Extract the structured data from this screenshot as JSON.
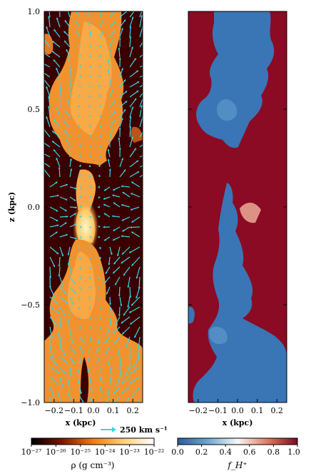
{
  "chart_data": [
    {
      "type": "heatmap",
      "title": "",
      "xlabel": "x (kpc)",
      "ylabel": "z (kpc)",
      "xlim": [
        -0.25,
        0.25
      ],
      "ylim": [
        -1.0,
        1.0
      ],
      "xticks": [
        "−0.2",
        "−0.1",
        "0.0",
        "0.1",
        "0.2"
      ],
      "yticks": [
        "−1.0",
        "−0.5",
        "0.0",
        "0.5",
        "1.0"
      ],
      "colorbar": {
        "label": "ρ (g cm⁻³)",
        "ticks": [
          "10⁻²⁷",
          "10⁻²⁶",
          "10⁻²⁵",
          "10⁻²⁴",
          "10⁻²³",
          "10⁻²²"
        ],
        "range": [
          -27,
          -22
        ],
        "colormap": "afmhot",
        "scale": "log"
      },
      "quiver_key": "250 km s⁻¹",
      "quiver_color": "#35d7e6",
      "background_color": "#3a0000"
    },
    {
      "type": "heatmap",
      "title": "",
      "xlabel": "x (kpc)",
      "ylabel": "",
      "xlim": [
        -0.25,
        0.25
      ],
      "ylim": [
        -1.0,
        1.0
      ],
      "xticks": [
        "−0.2",
        "−0.1",
        "0.0",
        "0.1",
        "0.2"
      ],
      "colorbar": {
        "label": "f_H⁺",
        "ticks": [
          "0.0",
          "0.2",
          "0.4",
          "0.6",
          "0.8",
          "1.0"
        ],
        "range": [
          0.0,
          1.0
        ],
        "colormap": "RdBu_r",
        "scale": "linear"
      },
      "background_color": "#8a0b23",
      "feature_color": "#3a75b5"
    }
  ]
}
